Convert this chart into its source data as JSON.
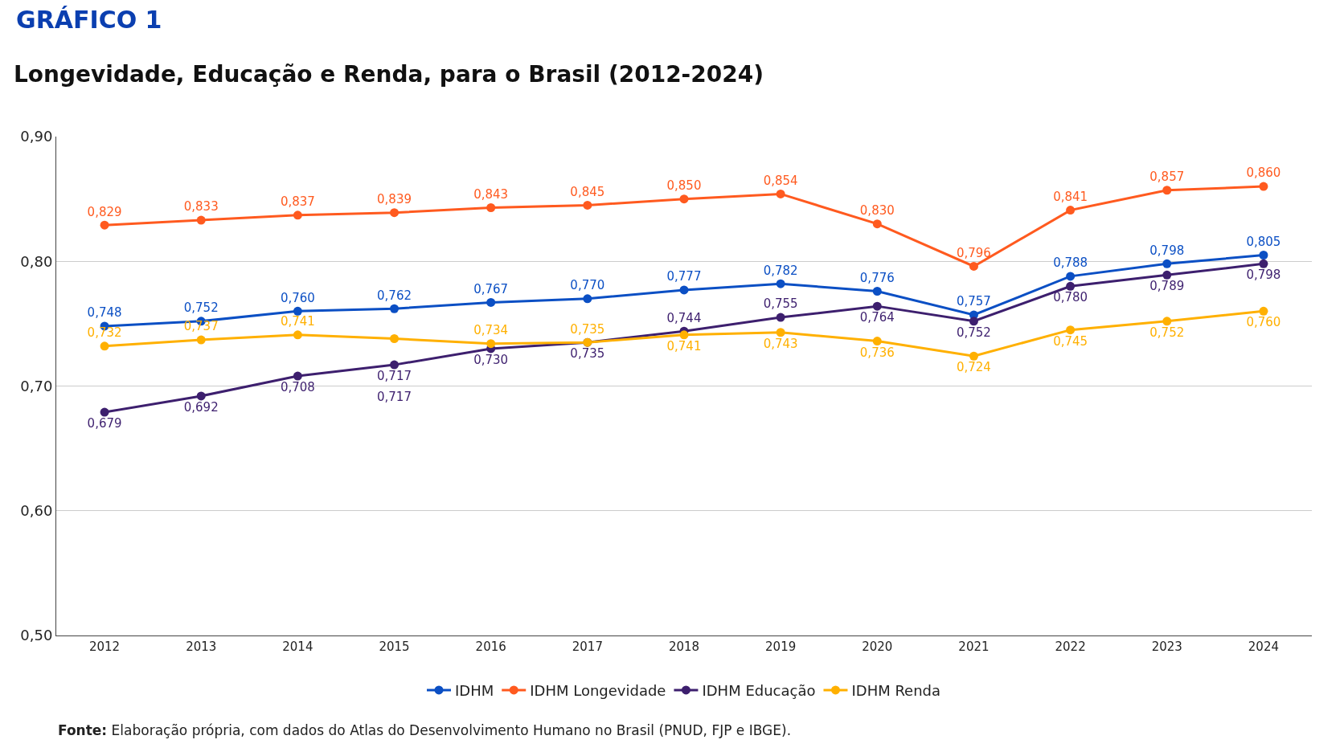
{
  "chart_data": {
    "type": "line",
    "title": "GRÁFICO 1",
    "subtitle": "Longevidade, Educação e Renda, para o Brasil (2012-2024)",
    "categories": [
      "2012",
      "2013",
      "2014",
      "2015",
      "2016",
      "2017",
      "2018",
      "2019",
      "2020",
      "2021",
      "2022",
      "2023",
      "2024"
    ],
    "series": [
      {
        "name": "IDHM",
        "color": "#0b4fc4",
        "values": [
          0.748,
          0.752,
          0.76,
          0.762,
          0.767,
          0.77,
          0.777,
          0.782,
          0.776,
          0.757,
          0.788,
          0.798,
          0.805
        ],
        "value_labels": [
          "0,748",
          "0,752",
          "0,760",
          "0,762",
          "0,767",
          "0,770",
          "0,777",
          "0,782",
          "0,776",
          "0,757",
          "0,788",
          "0,798",
          "0,805"
        ]
      },
      {
        "name": "IDHM Longevidade",
        "color": "#ff5a1f",
        "values": [
          0.829,
          0.833,
          0.837,
          0.839,
          0.843,
          0.845,
          0.85,
          0.854,
          0.83,
          0.796,
          0.841,
          0.857,
          0.86
        ],
        "value_labels": [
          "0,829",
          "0,833",
          "0,837",
          "0,839",
          "0,843",
          "0,845",
          "0,850",
          "0,854",
          "0,830",
          "0,796",
          "0,841",
          "0,857",
          "0,860"
        ]
      },
      {
        "name": "IDHM Educação",
        "color": "#3d1f6e",
        "values": [
          0.679,
          0.692,
          0.708,
          0.717,
          0.73,
          0.735,
          0.744,
          0.755,
          0.764,
          0.752,
          0.78,
          0.789,
          0.798
        ],
        "value_labels": [
          "0,679",
          "0,692",
          "0,708",
          "0,717",
          "0,730",
          "0,735",
          "0,744",
          "0,755",
          "0,764",
          "0,752",
          "0,780",
          "0,789",
          "0,798"
        ]
      },
      {
        "name": "IDHM Renda",
        "color": "#ffb000",
        "values": [
          0.732,
          0.737,
          0.741,
          0.738,
          0.734,
          0.735,
          0.741,
          0.743,
          0.736,
          0.724,
          0.745,
          0.752,
          0.76
        ],
        "value_labels": [
          "0,732",
          "0,737",
          "0,741",
          null,
          "0,734",
          "0,735",
          "0,741",
          "0,743",
          "0,736",
          "0,724",
          "0,745",
          "0,752",
          "0,760"
        ]
      }
    ],
    "ylim": [
      0.5,
      0.9
    ],
    "yticks": [
      {
        "value": 0.5,
        "label": "0,50"
      },
      {
        "value": 0.6,
        "label": "0,60"
      },
      {
        "value": 0.7,
        "label": "0,70"
      },
      {
        "value": 0.8,
        "label": "0,80"
      },
      {
        "value": 0.9,
        "label": "0,90"
      }
    ],
    "grid": "y",
    "legend": "bottom",
    "marker": "circle",
    "line_style": "solid",
    "annotations": [
      {
        "text": "0,717",
        "x": "2015",
        "y": 0.717
      },
      "Fonte: Elaboração própria, com dados do Atlas do Desenvolvimento Humano no Brasil (PNUD, FJP e IBGE)."
    ]
  }
}
